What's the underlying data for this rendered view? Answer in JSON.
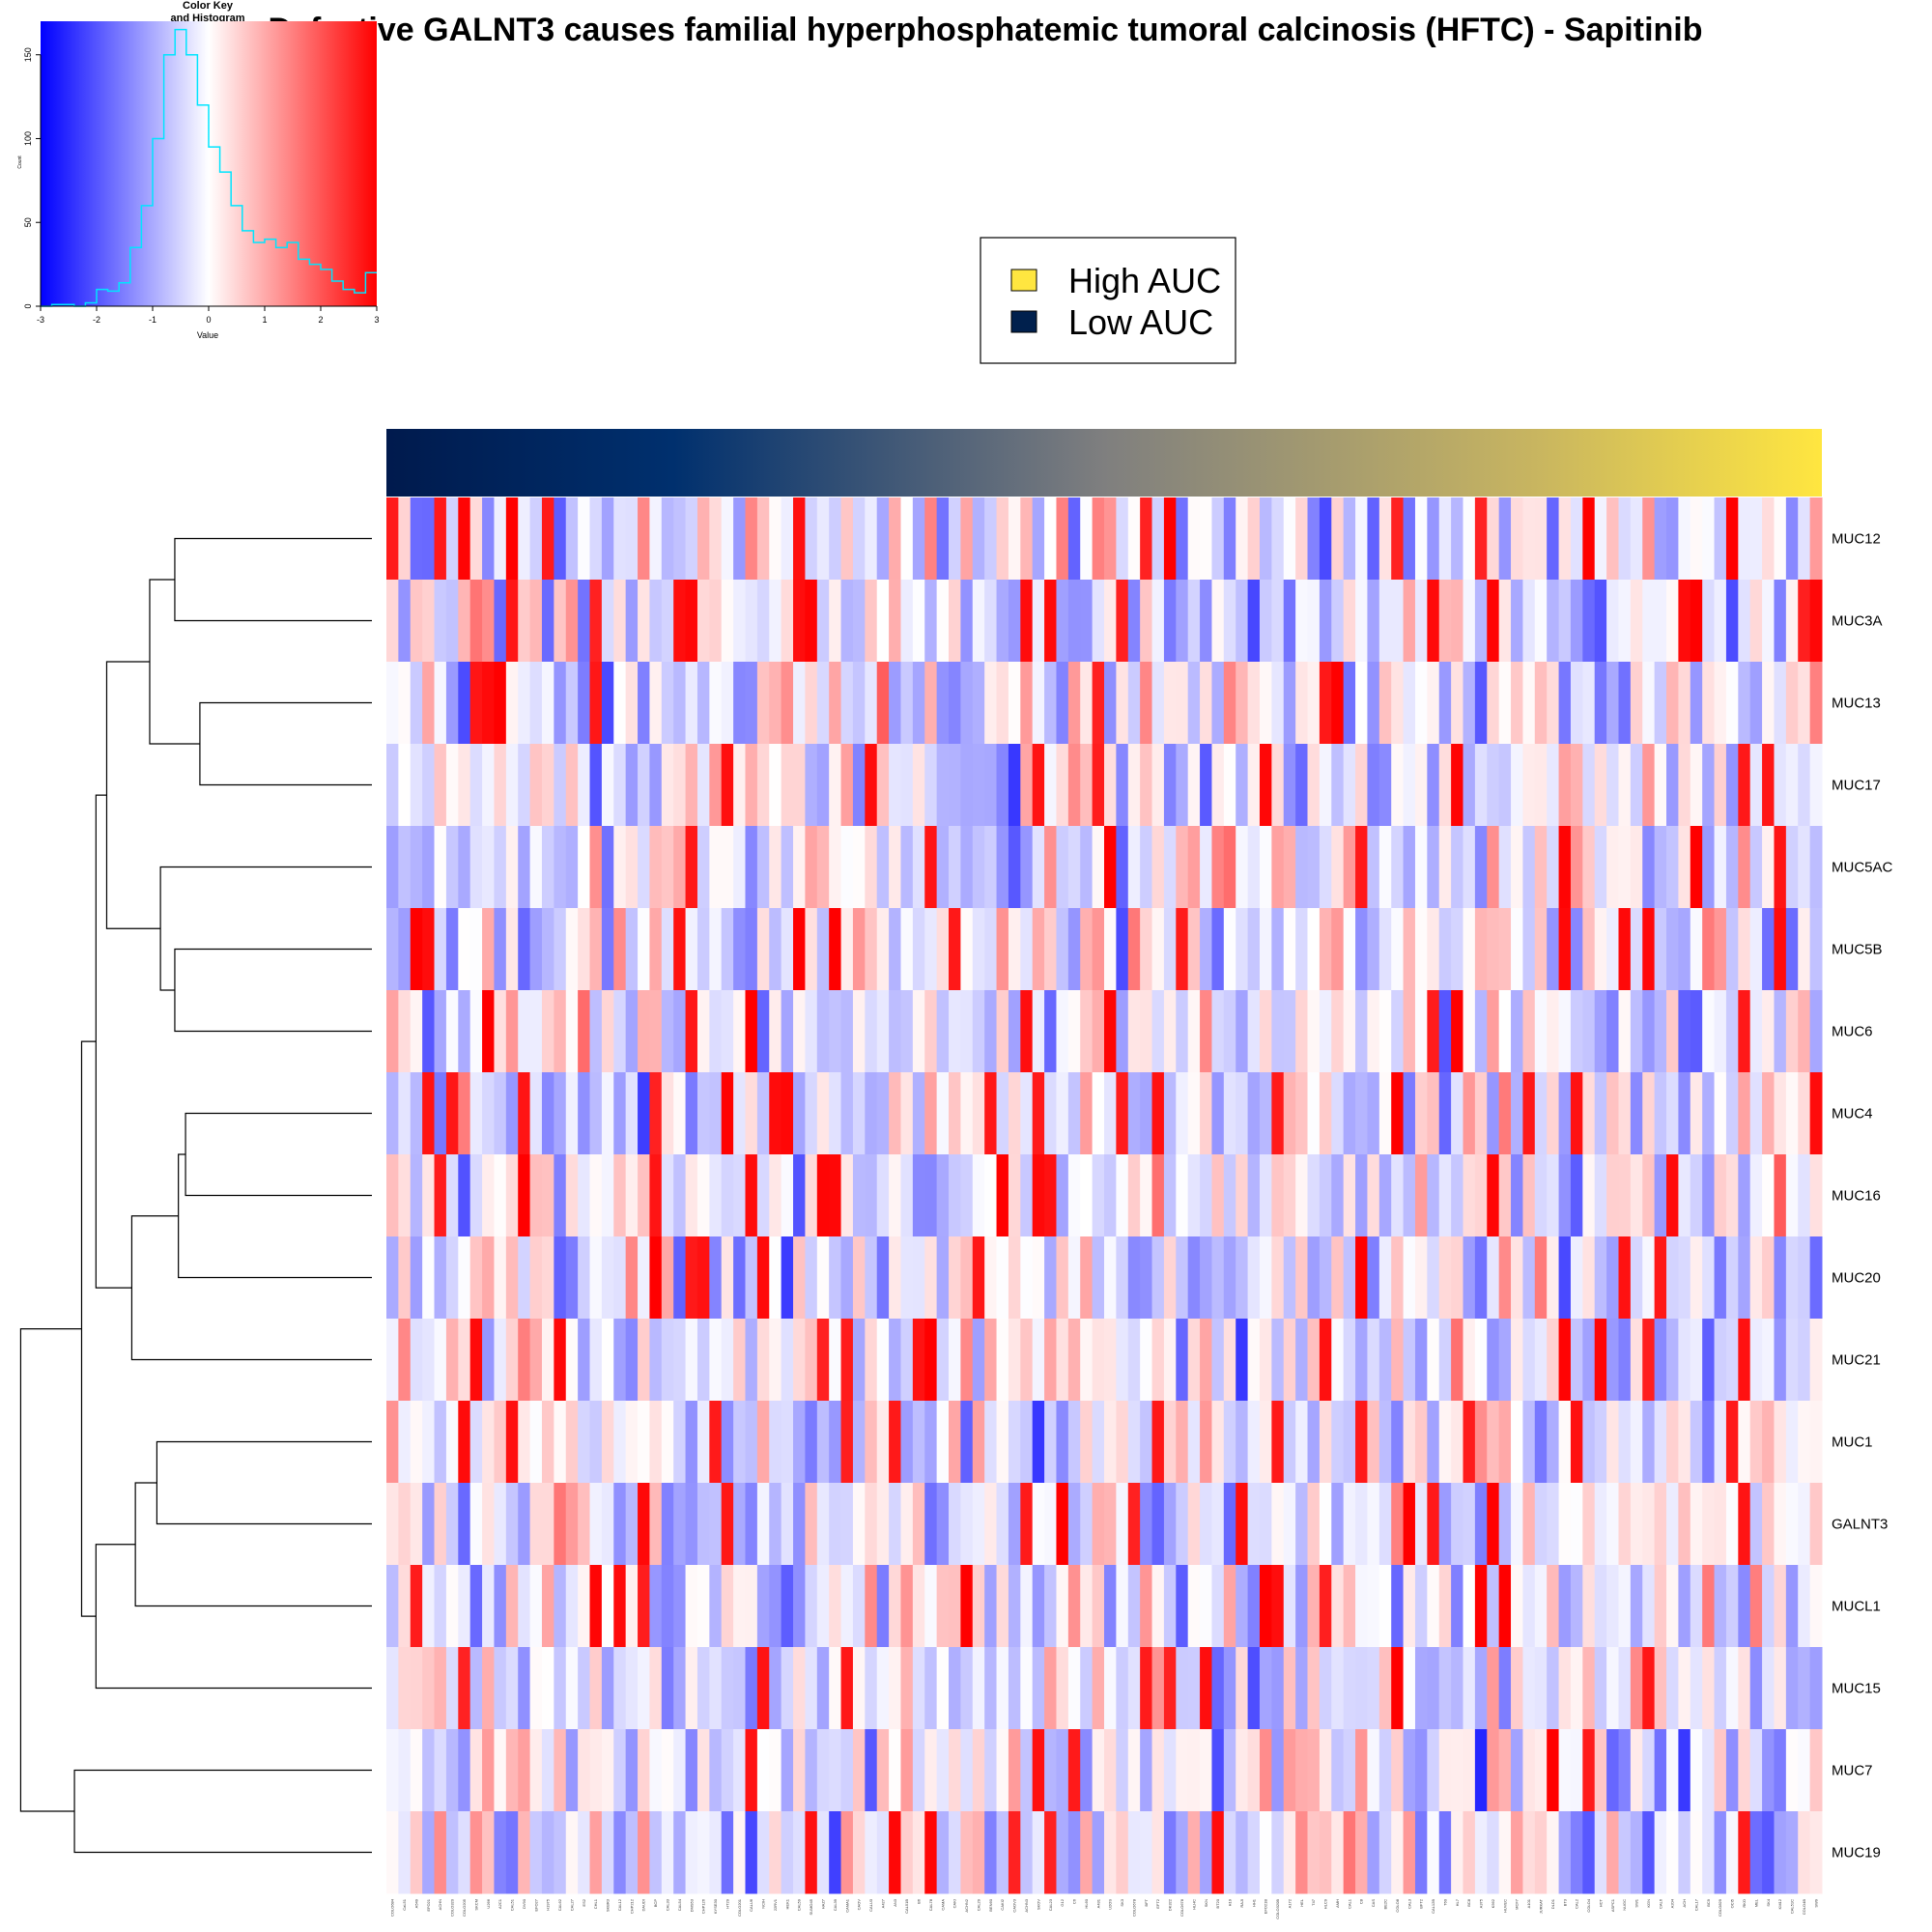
{
  "chart_data": {
    "type": "heatmap",
    "title": "Defective GALNT3 causes familial hyperphosphatemic tumoral calcinosis (HFTC) - Sapitinib",
    "rows": [
      "MUC12",
      "MUC3A",
      "MUC13",
      "MUC17",
      "MUC5AC",
      "MUC5B",
      "MUC6",
      "MUC4",
      "MUC16",
      "MUC20",
      "MUC21",
      "MUC1",
      "GALNT3",
      "MUCL1",
      "MUC15",
      "MUC7",
      "MUC19"
    ],
    "n_columns": 120,
    "column_labels": [
      "COLO684",
      "CaL51",
      "A549",
      "EFO21",
      "ACHN",
      "COLO320",
      "COLO205",
      "SKCM",
      "U266",
      "A2C1",
      "CAL51",
      "DV90",
      "EFO27",
      "H1975",
      "CAL62",
      "CAL27",
      "ES2",
      "CHL1",
      "SKBR3",
      "CAL12",
      "CHP212",
      "DAUDI",
      "BCP",
      "CAL33",
      "CAL54",
      "DMS53",
      "CHP126",
      "KYSE30",
      "HT29",
      "COLO201",
      "CALU6",
      "NCIH",
      "22RV1",
      "HEK1",
      "CAL59",
      "SUMO45",
      "HAZ7",
      "CAL39",
      "CAMA1",
      "CAOV",
      "CALU3",
      "A427",
      "AN3",
      "CAL51B",
      "B6",
      "CAL78",
      "CAMA",
      "CAKI",
      "ACHN2",
      "CAL29",
      "BEN60",
      "CAKI2",
      "CAOV3",
      "ACHN3",
      "SKOV",
      "CAL23",
      "G12",
      "C6",
      "HL60",
      "A431",
      "U2OS",
      "SK3",
      "COLO678",
      "BFT",
      "EFT2",
      "DK322",
      "COLO678",
      "HLHC",
      "SKN",
      "BT20",
      "H19",
      "RAJI",
      "HH1",
      "EFO21B",
      "COLO320B",
      "A172",
      "HEL",
      "T47",
      "HLC9",
      "AMH",
      "CAL1",
      "C8",
      "CAS",
      "BE2C",
      "COLO8",
      "CAL3",
      "BFT2",
      "CAL12B",
      "T60",
      "HL7",
      "BC8",
      "A375",
      "K562",
      "HUVEC",
      "MCF7",
      "A101",
      "JURKAT",
      "DLD1",
      "BT3",
      "CAL2",
      "COLO4",
      "HCT",
      "ASPC1",
      "NUGC",
      "SW1",
      "KGN",
      "CAL6",
      "A204",
      "ACH",
      "CAL17",
      "BC9",
      "COLO829",
      "OCI5",
      "RKO",
      "MEL",
      "SK4",
      "KM12",
      "CAL51C",
      "COLO4B",
      "SW9"
    ],
    "column_auc_range": [
      "Low AUC",
      "High AUC"
    ],
    "color_scale": {
      "low": "#0000ff",
      "mid": "#ffffff",
      "high": "#ff0000",
      "min": -3,
      "max": 3
    },
    "auc_colors": {
      "low": "#001a4d",
      "mid": "#808080",
      "high": "#ffe640"
    },
    "legend": {
      "position": "top-center",
      "entries": [
        {
          "label": "High AUC",
          "color": "#ffe640"
        },
        {
          "label": "Low AUC",
          "color": "#00204d"
        }
      ]
    },
    "color_key": {
      "title": "Color Key",
      "subtitle": "and Histogram",
      "xlabel": "Value",
      "ylabel": "Count",
      "xticks": [
        "-3",
        "-2",
        "-1",
        "0",
        "1",
        "2",
        "3"
      ],
      "yticks": [
        "0",
        "50",
        "100",
        "150"
      ],
      "xlim": [
        -3,
        3
      ],
      "ylim": [
        0,
        170
      ],
      "histogram": {
        "bins": [
          -3.0,
          -2.8,
          -2.6,
          -2.4,
          -2.2,
          -2.0,
          -1.8,
          -1.6,
          -1.4,
          -1.2,
          -1.0,
          -0.8,
          -0.6,
          -0.4,
          -0.2,
          0.0,
          0.2,
          0.4,
          0.6,
          0.8,
          1.0,
          1.2,
          1.4,
          1.6,
          1.8,
          2.0,
          2.2,
          2.4,
          2.6,
          2.8
        ],
        "counts": [
          0,
          1,
          1,
          0,
          2,
          10,
          9,
          14,
          35,
          60,
          100,
          150,
          165,
          150,
          120,
          95,
          80,
          60,
          45,
          38,
          40,
          35,
          38,
          28,
          25,
          22,
          15,
          10,
          8,
          20
        ]
      }
    },
    "dendrogram": {
      "merges": [
        {
          "a": "MUC12",
          "b": "MUC3A",
          "height": 0.55
        },
        {
          "a": "MUC13",
          "b": "MUC17",
          "height": 0.48
        },
        {
          "a": "c0",
          "b": "c1",
          "height": 0.62
        },
        {
          "a": "MUC5B",
          "b": "MUC6",
          "height": 0.55
        },
        {
          "a": "MUC5AC",
          "b": "c3",
          "height": 0.59
        },
        {
          "a": "c2",
          "b": "c4",
          "height": 0.74
        },
        {
          "a": "MUC4",
          "b": "MUC16",
          "height": 0.52
        },
        {
          "a": "c6",
          "b": "MUC20",
          "height": 0.54
        },
        {
          "a": "c7",
          "b": "MUC21",
          "height": 0.67
        },
        {
          "a": "c5",
          "b": "c8",
          "height": 0.77
        },
        {
          "a": "MUC1",
          "b": "GALNT3",
          "height": 0.6
        },
        {
          "a": "c10",
          "b": "MUCL1",
          "height": 0.66
        },
        {
          "a": "c11",
          "b": "MUC15",
          "height": 0.77
        },
        {
          "a": "c9",
          "b": "c12",
          "height": 0.81
        },
        {
          "a": "MUC7",
          "b": "MUC19",
          "height": 0.83
        },
        {
          "a": "c13",
          "b": "c14",
          "height": 0.98
        }
      ]
    },
    "values_seed": 20240517
  }
}
